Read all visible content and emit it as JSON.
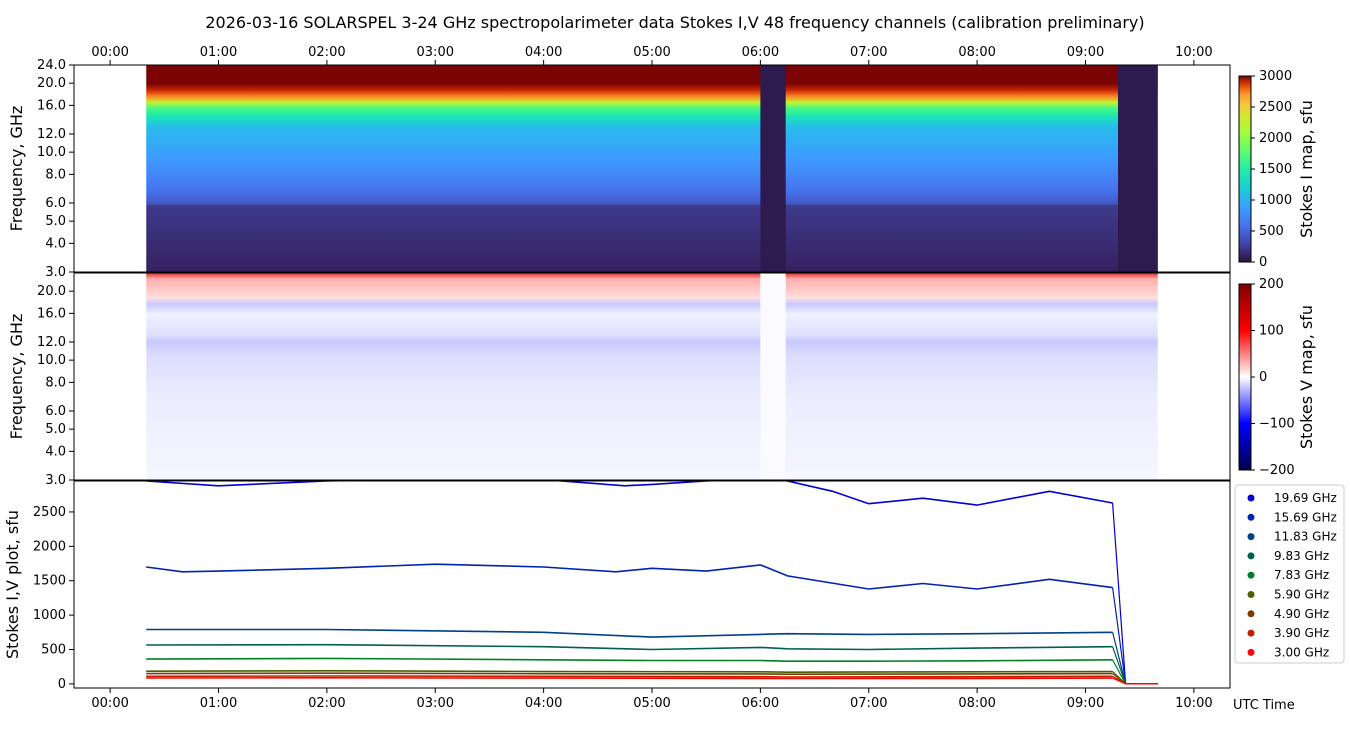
{
  "title": "2026-03-16  SOLARSPEL  3-24 GHz spectropolarimeter data   Stokes I,V   48 frequency channels   (calibration preliminary)",
  "colors": {
    "stokesI_colormap": "jet",
    "stokesV_colormap": "seismic",
    "line_colors": [
      "#0000d0",
      "#0022b0",
      "#00408a",
      "#006050",
      "#008020",
      "#4a6000",
      "#7a3a00",
      "#c02000",
      "#ff0000"
    ]
  },
  "chart_data": [
    {
      "type": "heatmap",
      "name": "Stokes I map",
      "ylabel": "Frequency, GHz",
      "y_ticks": [
        "3.0",
        "4.0",
        "5.0",
        "6.0",
        "8.0",
        "10.0",
        "12.0",
        "16.0",
        "20.0",
        "24.0"
      ],
      "x_ticks": [
        "00:00",
        "01:00",
        "02:00",
        "03:00",
        "04:00",
        "05:00",
        "06:00",
        "07:00",
        "08:00",
        "09:00",
        "10:00"
      ],
      "xlim": [
        "23:40",
        "10:20"
      ],
      "data_span": [
        "00:20",
        "09:40"
      ],
      "colorbar_label": "Stokes I map, sfu",
      "colorbar_ticks": [
        "0",
        "500",
        "1000",
        "1500",
        "2000",
        "2500",
        "3000"
      ],
      "gaps": [
        [
          "06:00",
          "06:14"
        ],
        [
          "09:18",
          "09:40"
        ]
      ]
    },
    {
      "type": "heatmap",
      "name": "Stokes V map",
      "ylabel": "Frequency, GHz",
      "y_ticks": [
        "3.0",
        "4.0",
        "5.0",
        "6.0",
        "8.0",
        "10.0",
        "12.0",
        "16.0",
        "20.0"
      ],
      "colorbar_label": "Stokes V map, sfu",
      "colorbar_ticks": [
        "200",
        "100",
        "0",
        "−100",
        "−200"
      ]
    },
    {
      "type": "line",
      "ylabel": "Stokes I,V plot, sfu",
      "xlabel": "UTC Time",
      "y_ticks": [
        "0",
        "500",
        "1000",
        "1500",
        "2000",
        "2500"
      ],
      "ylim": [
        -60,
        2950
      ],
      "x_ticks": [
        "00:00",
        "01:00",
        "02:00",
        "03:00",
        "04:00",
        "05:00",
        "06:00",
        "07:00",
        "08:00",
        "09:00",
        "10:00"
      ],
      "series": [
        {
          "name": "19.69 GHz",
          "x": [
            "00:20",
            "01:00",
            "02:00",
            "03:00",
            "04:00",
            "04:45",
            "05:00",
            "05:30",
            "06:00",
            "06:15",
            "06:40",
            "07:00",
            "07:30",
            "08:00",
            "08:40",
            "09:15"
          ],
          "values": [
            2950,
            2880,
            2950,
            2980,
            2970,
            2880,
            2900,
            2950,
            2990,
            2950,
            2800,
            2620,
            2700,
            2600,
            2800,
            2630
          ]
        },
        {
          "name": "15.69 GHz",
          "x": [
            "00:20",
            "00:40",
            "01:00",
            "02:00",
            "03:00",
            "04:00",
            "04:40",
            "05:00",
            "05:30",
            "06:00",
            "06:15",
            "07:00",
            "07:30",
            "08:00",
            "08:40",
            "09:15"
          ],
          "values": [
            1700,
            1630,
            1640,
            1680,
            1740,
            1700,
            1630,
            1680,
            1640,
            1730,
            1570,
            1380,
            1460,
            1380,
            1520,
            1400
          ]
        },
        {
          "name": "11.83 GHz",
          "x": [
            "00:20",
            "02:00",
            "04:00",
            "05:00",
            "06:00",
            "06:15",
            "07:00",
            "08:00",
            "09:15"
          ],
          "values": [
            790,
            790,
            750,
            680,
            720,
            730,
            720,
            730,
            750
          ]
        },
        {
          "name": "9.83 GHz",
          "x": [
            "00:20",
            "02:00",
            "04:00",
            "05:00",
            "06:00",
            "06:15",
            "07:00",
            "08:00",
            "09:15"
          ],
          "values": [
            565,
            570,
            540,
            500,
            530,
            510,
            500,
            520,
            540
          ]
        },
        {
          "name": "7.83 GHz",
          "x": [
            "00:20",
            "02:00",
            "04:00",
            "05:00",
            "06:00",
            "06:15",
            "07:00",
            "08:00",
            "09:15"
          ],
          "values": [
            360,
            370,
            350,
            340,
            340,
            330,
            330,
            335,
            350
          ]
        },
        {
          "name": "5.90 GHz",
          "x": [
            "00:20",
            "02:00",
            "04:00",
            "06:00",
            "06:15",
            "08:00",
            "09:15"
          ],
          "values": [
            185,
            190,
            180,
            175,
            170,
            175,
            180
          ]
        },
        {
          "name": "4.90 GHz",
          "x": [
            "00:20",
            "02:00",
            "04:00",
            "06:00",
            "06:15",
            "08:00",
            "09:15"
          ],
          "values": [
            150,
            155,
            148,
            145,
            140,
            145,
            150
          ]
        },
        {
          "name": "3.90 GHz",
          "x": [
            "00:20",
            "02:00",
            "04:00",
            "06:00",
            "06:15",
            "08:00",
            "09:15"
          ],
          "values": [
            110,
            115,
            110,
            105,
            100,
            105,
            110
          ]
        },
        {
          "name": "3.00 GHz",
          "x": [
            "00:20",
            "02:00",
            "04:00",
            "06:00",
            "06:15",
            "08:00",
            "09:15"
          ],
          "values": [
            85,
            88,
            84,
            80,
            78,
            80,
            84
          ]
        }
      ]
    }
  ]
}
